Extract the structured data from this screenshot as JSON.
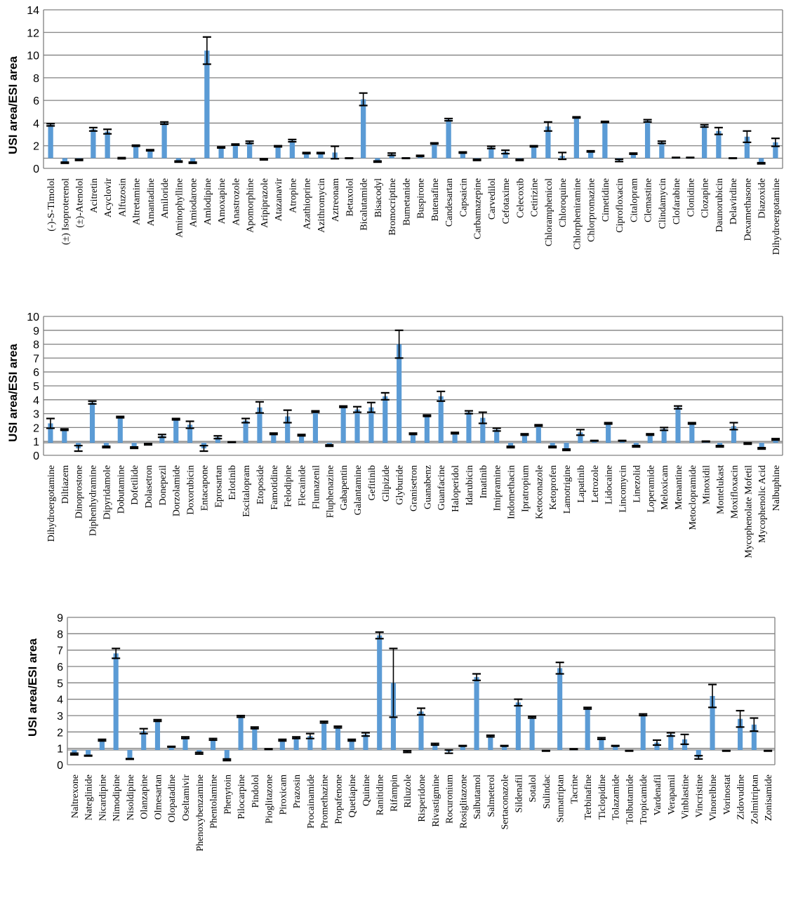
{
  "chart_data": [
    {
      "type": "bar",
      "ylabel": "USI area/ESI area",
      "ylim": [
        0,
        14
      ],
      "yticks": [
        0,
        2,
        4,
        6,
        8,
        10,
        12,
        14
      ],
      "grid": true,
      "baseline": 0.9,
      "colors": {
        "bar": "#5b9bd5",
        "grid": "#808080",
        "error_bar": "#000000"
      },
      "categories": [
        "(-)-S-Timolol",
        "(±) Isoproterenol",
        "(±)-Atenolol",
        "Acitretin",
        "Acyclovir",
        "Alfuzosin",
        "Altretamine",
        "Amantadine",
        "Amiloride",
        "Aminophylline",
        "Amiodarone",
        "Amlodipine",
        "Amoxapine",
        "Anastrozole",
        "Apomorphine",
        "Aripiprazole",
        "Atazanavir",
        "Atropine",
        "Azathioprine",
        "Azithromycin",
        "Aztreonam",
        "Betaxolol",
        "Bicalutamide",
        "Bisacodyl",
        "Bromocriptine",
        "Bumetanide",
        "Buspirone",
        "Butenafine",
        "Candesartan",
        "Capsaicin",
        "Carbamazepine",
        "Carvedilol",
        "Cefotaxime",
        "Celecoxib",
        "Cetirizine",
        "Chloramphenicol",
        "Chloroquine",
        "Chlorpheniramine",
        "Chlorpromazine",
        "Cimetidine",
        "Ciprofloxacin",
        "Citalopram",
        "Clemastine",
        "Clindamycin",
        "Clofarabine",
        "Clonidine",
        "Clozapine",
        "Daunorubicin",
        "Delavirdine",
        "Dexamethasone",
        "Diazoxide",
        "Dihydroergotamine"
      ],
      "values": [
        3.85,
        0.5,
        0.75,
        3.45,
        3.25,
        0.9,
        2.0,
        1.6,
        4.0,
        0.6,
        0.5,
        10.4,
        1.85,
        2.1,
        2.3,
        0.8,
        1.95,
        2.45,
        1.35,
        1.35,
        1.4,
        0.9,
        6.1,
        0.6,
        1.25,
        0.9,
        1.1,
        2.2,
        4.3,
        1.4,
        0.75,
        1.85,
        1.45,
        0.75,
        1.95,
        3.7,
        1.1,
        4.5,
        1.5,
        4.1,
        0.7,
        1.3,
        4.2,
        2.3,
        0.95,
        0.95,
        3.75,
        3.3,
        0.9,
        2.8,
        0.45,
        2.3
      ],
      "errors": [
        0.1,
        0.05,
        0.05,
        0.15,
        0.2,
        0.05,
        0.05,
        0.05,
        0.1,
        0.05,
        0.05,
        1.2,
        0.05,
        0.05,
        0.1,
        0.05,
        0.05,
        0.1,
        0.05,
        0.05,
        0.55,
        0.02,
        0.55,
        0.05,
        0.1,
        0.02,
        0.05,
        0.05,
        0.1,
        0.05,
        0.05,
        0.1,
        0.15,
        0.05,
        0.05,
        0.4,
        0.3,
        0.05,
        0.05,
        0.05,
        0.1,
        0.05,
        0.1,
        0.1,
        0.02,
        0.02,
        0.1,
        0.3,
        0.02,
        0.5,
        0.05,
        0.35
      ]
    },
    {
      "type": "bar",
      "ylabel": "USI area/ESI area",
      "ylim": [
        0,
        10
      ],
      "yticks": [
        0,
        1,
        2,
        3,
        4,
        5,
        6,
        7,
        8,
        9,
        10
      ],
      "grid": true,
      "baseline": 0.9,
      "colors": {
        "bar": "#5b9bd5",
        "grid": "#808080",
        "error_bar": "#000000"
      },
      "categories": [
        "Dihydroergotamine",
        "Diltiazem",
        "Dinoprostone",
        "Diphenhydramine",
        "Dipyridamole",
        "Dobutamine",
        "Dofetilide",
        "Dolasetron",
        "Donepezil",
        "Dorzolamide",
        "Doxorubicin",
        "Entacapone",
        "Eprosartan",
        "Erlotinib",
        "Escitalopram",
        "Etoposide",
        "Famotidine",
        "Felodipine",
        "Flecainide",
        "Flumazenil",
        "Fluphenazine",
        "Gabapentin",
        "Galantamine",
        "Gefitinib",
        "Glipizide",
        "Glyburide",
        "Granisetron",
        "Guanabenz",
        "Guanfacine",
        "Haloperidol",
        "Idarubicin",
        "Imatinib",
        "Imipramine",
        "Indomethacin",
        "Ipratropium",
        "Ketoconazole",
        "Ketoprofen",
        "Lamotrigine",
        "Lapatinib",
        "Letrozole",
        "Lidocaine",
        "Lincomycin",
        "Linezolid",
        "Loperamide",
        "Meloxicam",
        "Memantine",
        "Metoclopramide",
        "Minoxidil",
        "Montelukast",
        "Moxifloxacin",
        "Mycophenolate Mofetil",
        "Mycophenolic Acid",
        "Nalbuphine"
      ],
      "values": [
        2.3,
        1.85,
        0.5,
        3.8,
        0.6,
        2.75,
        0.55,
        0.8,
        1.4,
        2.6,
        2.2,
        0.5,
        1.3,
        0.95,
        2.5,
        3.45,
        1.55,
        2.8,
        1.45,
        3.15,
        0.7,
        3.5,
        3.3,
        3.45,
        4.25,
        8.0,
        1.55,
        2.85,
        4.25,
        1.6,
        3.1,
        2.7,
        1.85,
        0.6,
        1.5,
        2.15,
        0.6,
        0.4,
        1.65,
        1.05,
        2.3,
        1.05,
        0.65,
        1.5,
        1.9,
        3.45,
        2.3,
        1.0,
        0.65,
        2.1,
        0.85,
        0.5,
        1.15
      ],
      "errors": [
        0.35,
        0.05,
        0.2,
        0.1,
        0.05,
        0.05,
        0.05,
        0.05,
        0.1,
        0.05,
        0.25,
        0.2,
        0.1,
        0.02,
        0.15,
        0.4,
        0.05,
        0.45,
        0.05,
        0.05,
        0.05,
        0.05,
        0.2,
        0.35,
        0.25,
        1.0,
        0.05,
        0.05,
        0.35,
        0.05,
        0.1,
        0.4,
        0.1,
        0.05,
        0.05,
        0.05,
        0.05,
        0.05,
        0.2,
        0.02,
        0.05,
        0.02,
        0.05,
        0.05,
        0.1,
        0.1,
        0.05,
        0.02,
        0.05,
        0.25,
        0.05,
        0.05,
        0.05
      ]
    },
    {
      "type": "bar",
      "ylabel": "USI area/ESI area",
      "ylim": [
        0,
        9
      ],
      "yticks": [
        0,
        1,
        2,
        3,
        4,
        5,
        6,
        7,
        8,
        9
      ],
      "grid": true,
      "baseline": 0.9,
      "colors": {
        "bar": "#5b9bd5",
        "grid": "#808080",
        "error_bar": "#000000"
      },
      "categories": [
        "Naltrexone",
        "Nateglinide",
        "Nicardipine",
        "Nimodipine",
        "Nisoldipine",
        "Olanzapine",
        "Olmesartan",
        "Olopatadine",
        "Oseltamivir",
        "Phenoxybenzamine",
        "Phentolamine",
        "Phenytoin",
        "Pilocarpine",
        "Pindolol",
        "Pioglitazone",
        "Piroxicam",
        "Prazosin",
        "Procainamide",
        "Promethazine",
        "Propafenone",
        "Quetiapine",
        "Quinine",
        "Ranitidine",
        "Rifampin",
        "Riluzole",
        "Risperidone",
        "Rivastigmine",
        "Rocuronium",
        "Rosiglitazone",
        "Salbutamol",
        "Salmeterol",
        "Sertaconazole",
        "Sildenafil",
        "Sotalol",
        "Sulindac",
        "Sumatriptan",
        "Tacrine",
        "Terbinafine",
        "Ticlopidine",
        "Tolazamide",
        "Tolbutamide",
        "Tropicamide",
        "Vardenafil",
        "Verapamil",
        "Vinblastine",
        "Vincristine",
        "Vinorelbine",
        "Vorinostat",
        "Zidovudine",
        "Zolmitriptan",
        "Zonisamide"
      ],
      "values": [
        0.65,
        0.55,
        1.5,
        6.8,
        0.35,
        2.05,
        2.7,
        1.1,
        1.65,
        0.7,
        1.55,
        0.3,
        2.95,
        2.25,
        0.95,
        1.5,
        1.65,
        1.75,
        2.6,
        2.3,
        1.5,
        1.85,
        7.9,
        5.0,
        0.8,
        3.25,
        1.25,
        0.8,
        1.15,
        5.35,
        1.75,
        1.15,
        3.8,
        2.9,
        0.85,
        5.9,
        0.95,
        3.45,
        1.6,
        1.15,
        0.85,
        3.05,
        1.35,
        1.85,
        1.55,
        0.45,
        4.2,
        0.85,
        2.8,
        2.45,
        0.85
      ],
      "errors": [
        0.05,
        0.02,
        0.05,
        0.3,
        0.02,
        0.15,
        0.05,
        0.02,
        0.05,
        0.05,
        0.05,
        0.05,
        0.05,
        0.05,
        0.02,
        0.05,
        0.05,
        0.15,
        0.05,
        0.05,
        0.05,
        0.1,
        0.2,
        2.1,
        0.05,
        0.2,
        0.05,
        0.1,
        0.02,
        0.2,
        0.05,
        0.02,
        0.2,
        0.05,
        0.02,
        0.35,
        0.02,
        0.05,
        0.05,
        0.02,
        0.02,
        0.05,
        0.15,
        0.1,
        0.3,
        0.1,
        0.7,
        0.02,
        0.5,
        0.4,
        0.02
      ]
    }
  ]
}
